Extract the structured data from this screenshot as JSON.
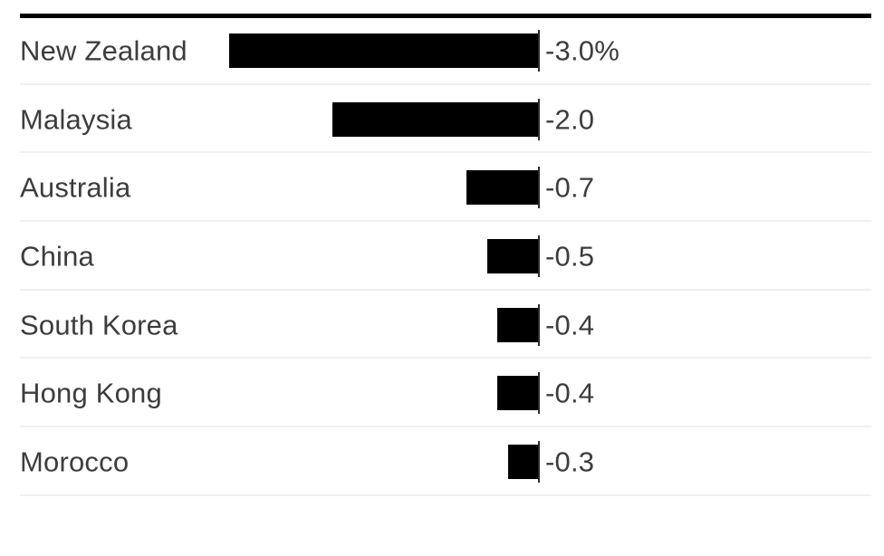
{
  "chart_data": {
    "type": "bar",
    "orientation": "horizontal",
    "title": "",
    "xlabel": "",
    "ylabel": "",
    "unit": "%",
    "xlim": [
      -3.2,
      0
    ],
    "grid": false,
    "legend": false,
    "categories": [
      "New Zealand",
      "Malaysia",
      "Australia",
      "China",
      "South Korea",
      "Hong Kong",
      "Morocco"
    ],
    "values": [
      -3.0,
      -2.0,
      -0.7,
      -0.5,
      -0.4,
      -0.4,
      -0.3
    ],
    "value_labels": [
      "-3.0%",
      "-2.0",
      "-0.7",
      "-0.5",
      "-0.4",
      "-0.4",
      "-0.3"
    ]
  },
  "colors": {
    "bar": "#000000",
    "text": "#3d3d3d",
    "separator": "#f0f0f0",
    "axis_line": "#2b2b2b",
    "top_rule": "#000000"
  }
}
